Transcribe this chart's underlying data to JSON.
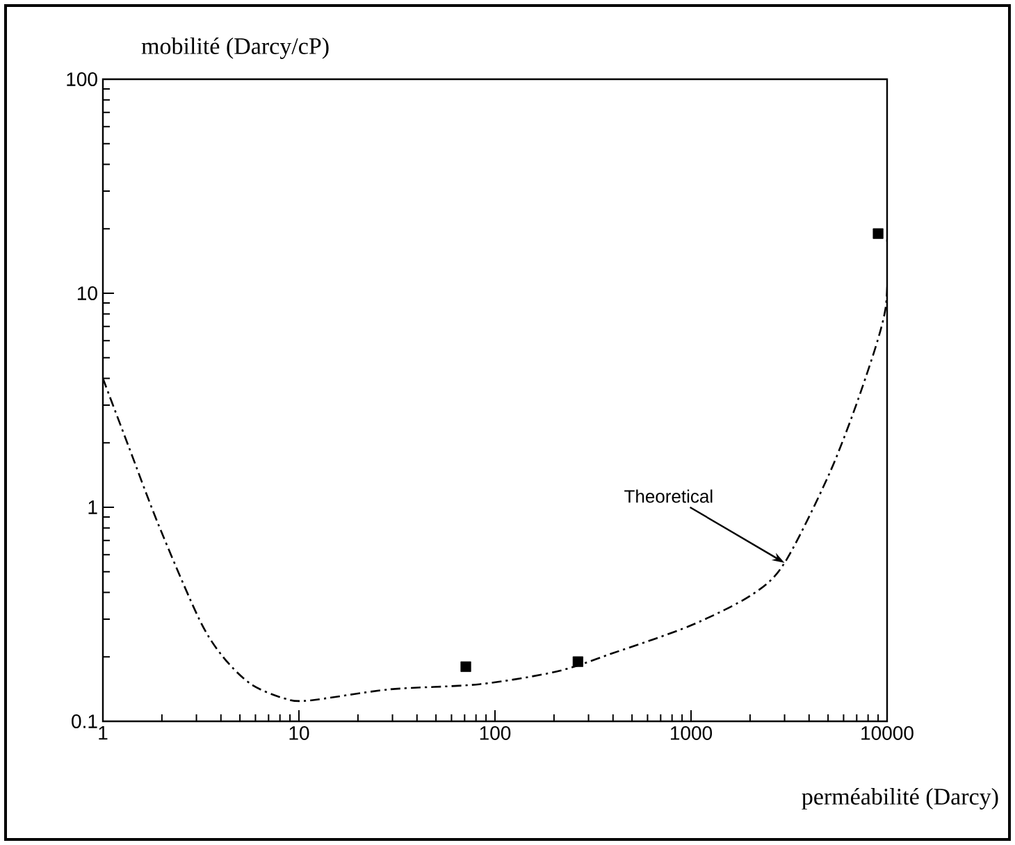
{
  "chart_data": {
    "type": "line",
    "xlabel": "perméabilité (Darcy)",
    "ylabel": "mobilité (Darcy/cP)",
    "log": "xy",
    "xlim": [
      1,
      10000
    ],
    "ylim": [
      0.1,
      100
    ],
    "xticks": [
      1,
      10,
      100,
      1000,
      10000
    ],
    "yticks": [
      0.1,
      1,
      10,
      100
    ],
    "grid": false,
    "series": [
      {
        "color": "#000000",
        "line_style": "dashdot",
        "marker": "none",
        "x": [
          1,
          1.36,
          1.92,
          3.1,
          4.1,
          5.7,
          8.4,
          11.2,
          29,
          83,
          207,
          398,
          993,
          2040,
          3000,
          5100,
          7450,
          9800,
          10000
        ],
        "values": [
          4,
          1.9,
          0.83,
          0.3,
          0.2,
          0.149,
          0.128,
          0.125,
          0.141,
          0.149,
          0.171,
          0.208,
          0.28,
          0.39,
          0.55,
          1.45,
          3.6,
          8.4,
          18
        ]
      },
      {
        "type": "scatter",
        "color": "#000000",
        "marker": "square",
        "x": [
          71,
          265,
          9000
        ],
        "values": [
          0.18,
          0.19,
          19
        ]
      }
    ],
    "annotations": [
      {
        "text": "Theoretical",
        "x": 3000,
        "y": 0.55
      }
    ]
  }
}
